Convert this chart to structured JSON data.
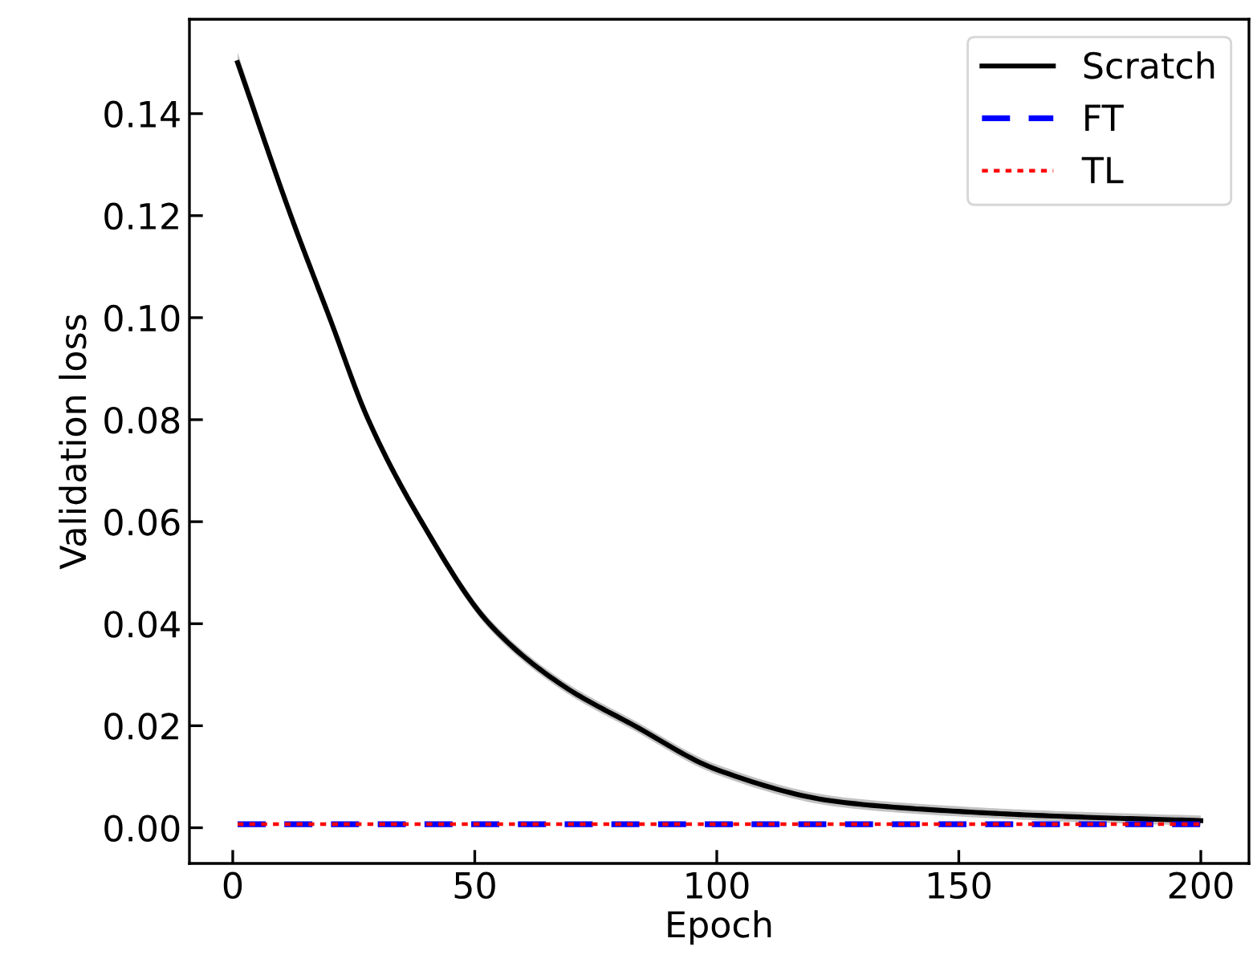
{
  "chart_data": {
    "type": "line",
    "xlabel": "Epoch",
    "ylabel": "Validation loss",
    "xlim": [
      -8.95,
      209.95
    ],
    "xticks": [
      0,
      50,
      100,
      150,
      200
    ],
    "ylim": [
      -0.007,
      0.1585
    ],
    "yticks": [
      {
        "value": 0,
        "label": "0.00"
      },
      {
        "value": 0.02,
        "label": "0.02"
      },
      {
        "value": 0.04,
        "label": "0.04"
      },
      {
        "value": 0.06,
        "label": "0.06"
      },
      {
        "value": 0.08,
        "label": "0.08"
      },
      {
        "value": 0.1,
        "label": "0.10"
      },
      {
        "value": 0.12,
        "label": "0.12"
      },
      {
        "value": 0.14,
        "label": "0.14"
      }
    ],
    "grid": false,
    "legend": "top right",
    "series": [
      {
        "name": "Scratch",
        "color": "#000000",
        "line_style": "solid",
        "x": [
          1,
          12,
          20,
          28,
          39,
          53,
          68,
          83,
          100,
          125,
          150,
          175,
          200
        ],
        "values": [
          0.15,
          0.12,
          0.1,
          0.08,
          0.06,
          0.04,
          0.028,
          0.02,
          0.0114,
          0.0051,
          0.0032,
          0.0021,
          0.0014
        ],
        "lower": [
          0.149,
          0.119,
          0.099,
          0.079,
          0.059,
          0.039,
          0.027,
          0.019,
          0.0104,
          0.0041,
          0.0022,
          0.0011,
          0.0004
        ],
        "upper": [
          0.152,
          0.121,
          0.101,
          0.081,
          0.061,
          0.041,
          0.029,
          0.021,
          0.0124,
          0.0061,
          0.0042,
          0.0031,
          0.0024
        ]
      },
      {
        "name": "FT",
        "color": "#0000ff",
        "line_style": "dashed",
        "x": [
          1,
          200
        ],
        "values": [
          0.0007,
          0.0007
        ]
      },
      {
        "name": "TL",
        "color": "#ff0000",
        "line_style": "dotted",
        "x": [
          1,
          200
        ],
        "values": [
          0.0007,
          0.0007
        ]
      }
    ]
  }
}
